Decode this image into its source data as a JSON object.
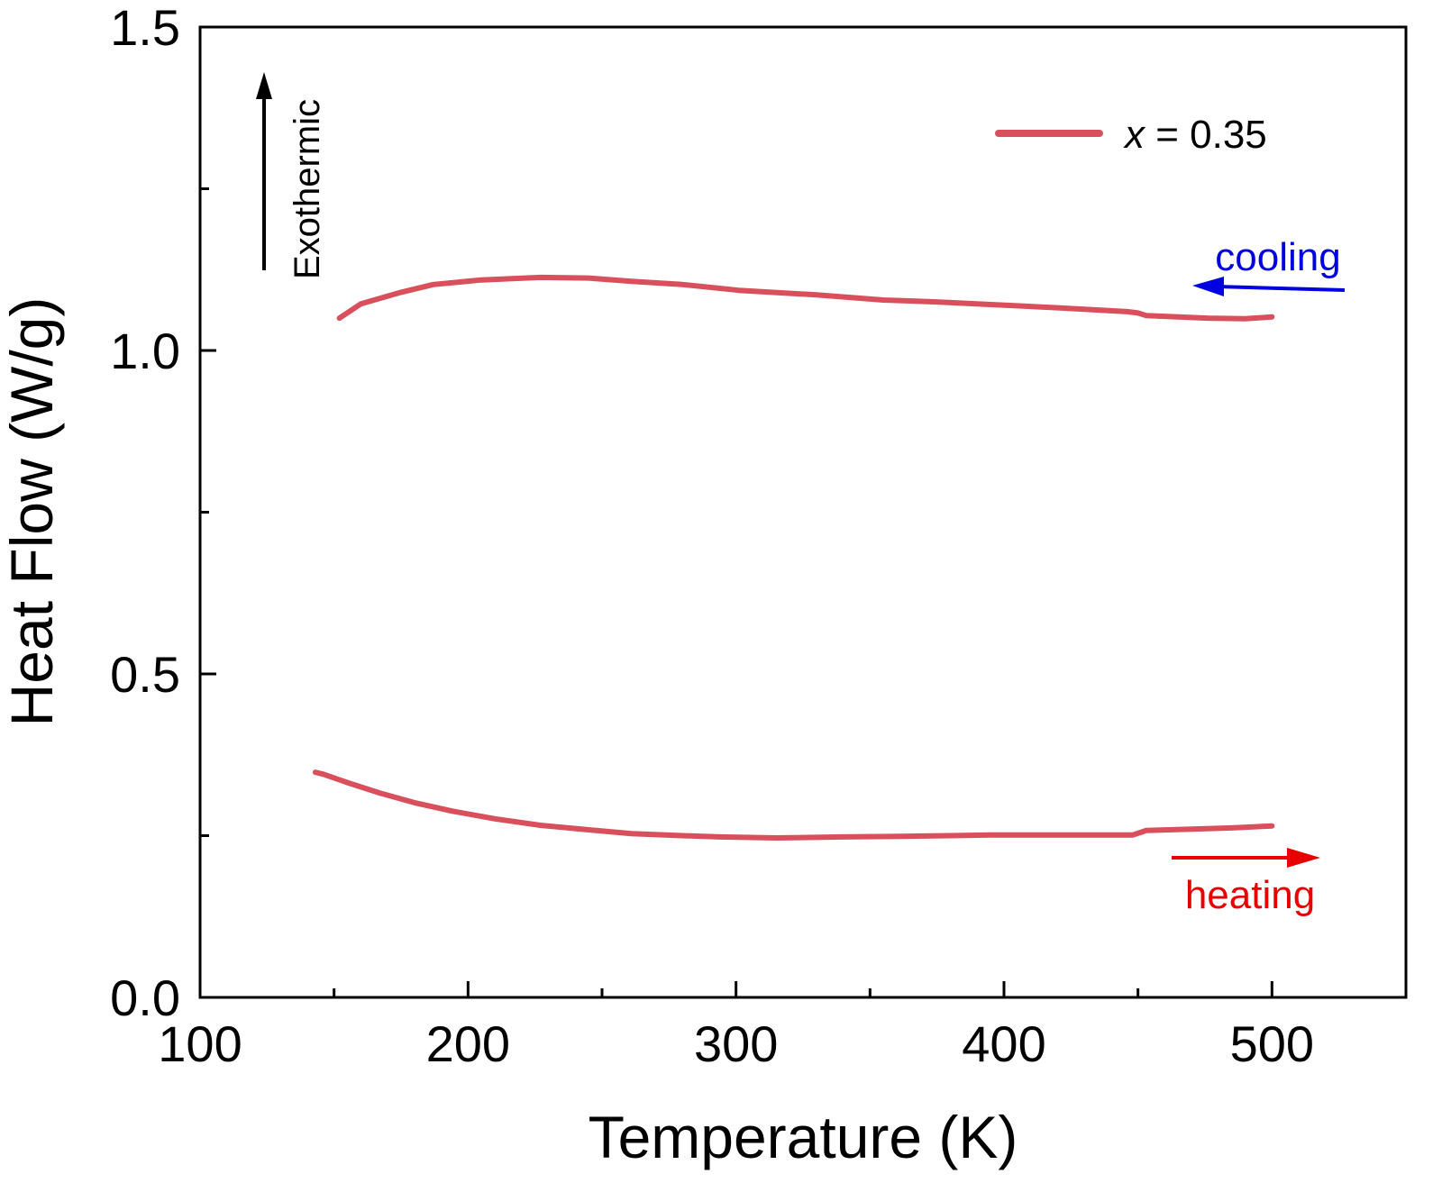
{
  "chart_data": {
    "type": "line",
    "title": "",
    "xlabel": "Temperature (K)",
    "ylabel": "Heat Flow (W/g)",
    "xlim": [
      100,
      550
    ],
    "ylim": [
      0,
      1.5
    ],
    "xticks": [
      100,
      200,
      300,
      400,
      500
    ],
    "xtick_labels": [
      "100",
      "200",
      "300",
      "400",
      "500"
    ],
    "yticks": [
      0,
      0.5,
      1.0,
      1.5
    ],
    "ytick_labels": [
      "0.0",
      "0.5",
      "1.0",
      "1.5"
    ],
    "grid": false,
    "legend_position": "top-right",
    "series": [
      {
        "name": "x = 0.35",
        "color": "#d94f5c",
        "segments": [
          {
            "direction": "cooling",
            "x": [
              152,
              160,
              175,
              187,
              205,
              227,
              245,
              261,
              280,
              301,
              330,
              355,
              375,
              395,
              420,
              446,
              450,
              453,
              465,
              476,
              490,
              500
            ],
            "y": [
              1.05,
              1.072,
              1.09,
              1.102,
              1.109,
              1.113,
              1.112,
              1.107,
              1.102,
              1.093,
              1.086,
              1.078,
              1.075,
              1.071,
              1.066,
              1.06,
              1.058,
              1.054,
              1.052,
              1.05,
              1.049,
              1.052
            ]
          },
          {
            "direction": "heating",
            "x": [
              143,
              146,
              155,
              167,
              180,
              194,
              210,
              227,
              245,
              261,
              280,
              294,
              315,
              340,
              362,
              380,
              395,
              420,
              448,
              451,
              453,
              470,
              485,
              500
            ],
            "y": [
              0.348,
              0.345,
              0.332,
              0.316,
              0.301,
              0.288,
              0.276,
              0.266,
              0.259,
              0.253,
              0.25,
              0.248,
              0.2465,
              0.248,
              0.249,
              0.25,
              0.251,
              0.251,
              0.251,
              0.255,
              0.258,
              0.26,
              0.262,
              0.265
            ]
          }
        ]
      }
    ],
    "annotations": {
      "exothermic": {
        "text": "Exothermic",
        "color": "#000000"
      },
      "cooling": {
        "text": "cooling",
        "color": "#0000e0"
      },
      "heating": {
        "text": "heating",
        "color": "#e80000"
      }
    }
  }
}
